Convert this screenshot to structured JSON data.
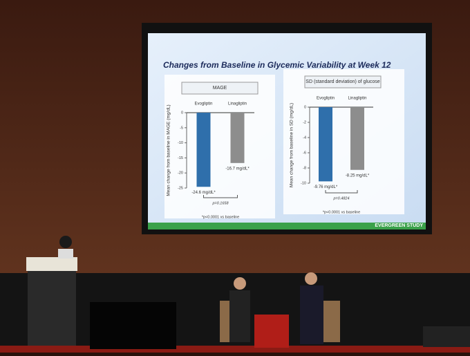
{
  "slide": {
    "title": "Changes from Baseline in Glycemic Variability at Week 12",
    "footer": "EVERGREEN STUDY"
  },
  "chart_data": [
    {
      "type": "bar",
      "title": "MAGE",
      "y_label": "Mean change from baseline in MAGE (mg/dL)",
      "categories": [
        "Evogliptin",
        "Linagliptin"
      ],
      "values": [
        -24.6,
        -16.7
      ],
      "value_labels": [
        "-24.6 mg/dL*",
        "-16.7 mg/dL*"
      ],
      "colors": [
        "#2f6fab",
        "#8d8d8d"
      ],
      "ylim": [
        -25,
        0
      ],
      "yticks": [
        0,
        -5,
        -10,
        -15,
        -20,
        -25
      ],
      "annotation": "p=0.1658",
      "footnote": "*p<0.0001 vs baseline"
    },
    {
      "type": "bar",
      "title": "SD (standard deviation) of glucose",
      "y_label": "Mean change from baseline in SD (mg/dL)",
      "categories": [
        "Evogliptin",
        "Linagliptin"
      ],
      "values": [
        -9.76,
        -8.25
      ],
      "value_labels": [
        "-9.76 mg/dL*",
        "-8.25 mg/dL*"
      ],
      "colors": [
        "#2f6fab",
        "#8d8d8d"
      ],
      "ylim": [
        -10,
        0
      ],
      "yticks": [
        0,
        -2,
        -4,
        -6,
        -8,
        -10
      ],
      "annotation": "p=0.4824",
      "footnote": "*p<0.0001 vs baseline"
    }
  ]
}
